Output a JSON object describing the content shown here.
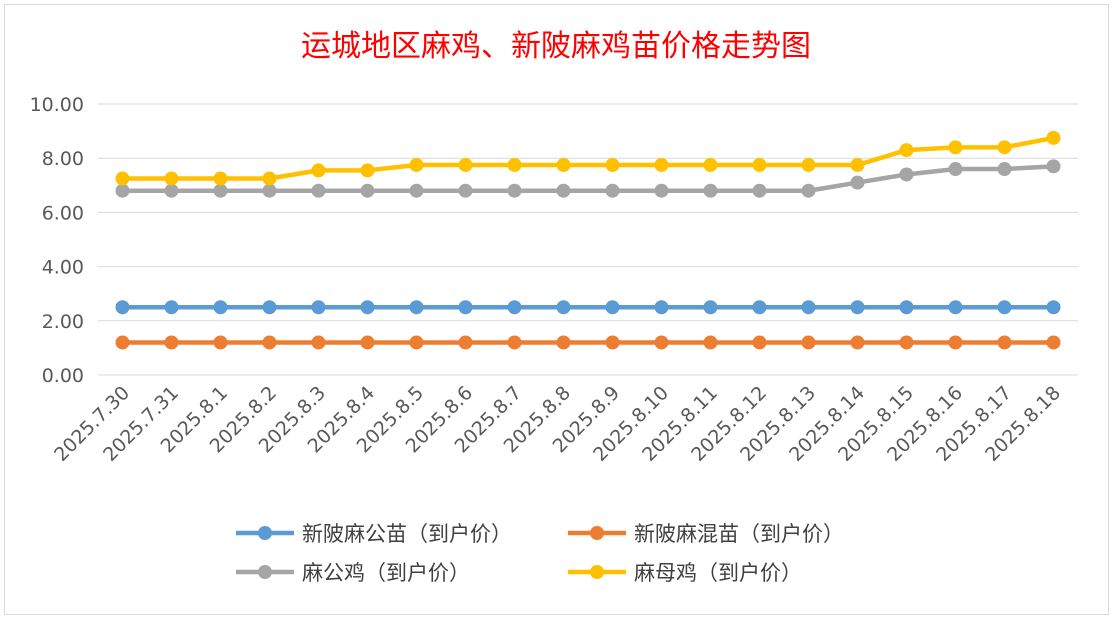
{
  "chart_data": {
    "type": "line",
    "title": "运城地区麻鸡、新陂麻鸡苗价格走势图",
    "categories": [
      "2025.7.30",
      "2025.7.31",
      "2025.8.1",
      "2025.8.2",
      "2025.8.3",
      "2025.8.4",
      "2025.8.5",
      "2025.8.6",
      "2025.8.7",
      "2025.8.8",
      "2025.8.9",
      "2025.8.10",
      "2025.8.11",
      "2025.8.12",
      "2025.8.13",
      "2025.8.14",
      "2025.8.15",
      "2025.8.16",
      "2025.8.17",
      "2025.8.18"
    ],
    "ylim": [
      0,
      10
    ],
    "yticks": [
      "0.00",
      "2.00",
      "4.00",
      "6.00",
      "8.00",
      "10.00"
    ],
    "grid": true,
    "legend_position": "bottom",
    "series": [
      {
        "name": "新陂麻公苗（到户价）",
        "color": "#5b9bd5",
        "values": [
          2.5,
          2.5,
          2.5,
          2.5,
          2.5,
          2.5,
          2.5,
          2.5,
          2.5,
          2.5,
          2.5,
          2.5,
          2.5,
          2.5,
          2.5,
          2.5,
          2.5,
          2.5,
          2.5,
          2.5
        ]
      },
      {
        "name": "新陂麻混苗（到户价）",
        "color": "#ed7d31",
        "values": [
          1.2,
          1.2,
          1.2,
          1.2,
          1.2,
          1.2,
          1.2,
          1.2,
          1.2,
          1.2,
          1.2,
          1.2,
          1.2,
          1.2,
          1.2,
          1.2,
          1.2,
          1.2,
          1.2,
          1.2
        ]
      },
      {
        "name": "麻公鸡（到户价）",
        "color": "#a5a5a5",
        "values": [
          6.8,
          6.8,
          6.8,
          6.8,
          6.8,
          6.8,
          6.8,
          6.8,
          6.8,
          6.8,
          6.8,
          6.8,
          6.8,
          6.8,
          6.8,
          7.1,
          7.4,
          7.6,
          7.6,
          7.7
        ]
      },
      {
        "name": "麻母鸡（到户价）",
        "color": "#ffc000",
        "values": [
          7.25,
          7.25,
          7.25,
          7.25,
          7.55,
          7.55,
          7.75,
          7.75,
          7.75,
          7.75,
          7.75,
          7.75,
          7.75,
          7.75,
          7.75,
          7.75,
          8.3,
          8.4,
          8.4,
          8.75
        ]
      }
    ]
  }
}
